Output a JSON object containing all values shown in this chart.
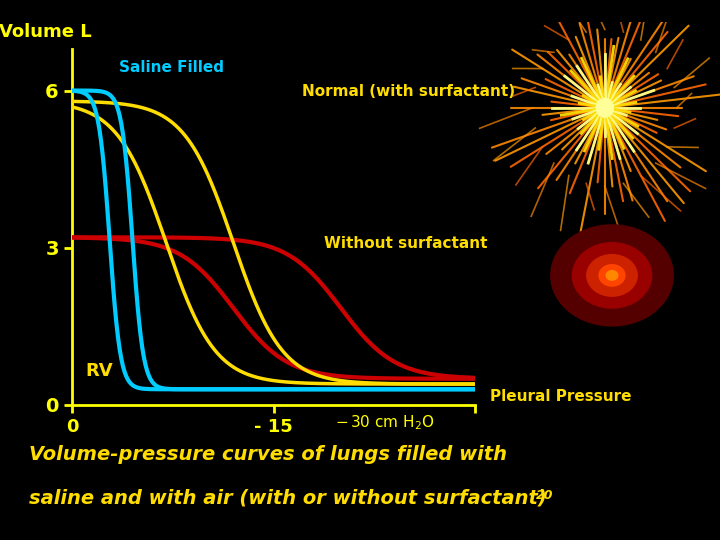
{
  "background_color": "#000000",
  "ylabel": "Volume L",
  "axis_color": "#ffff00",
  "tick_color": "#ffff00",
  "saline_color": "#00ccff",
  "normal_color": "#ffdd00",
  "without_color": "#cc0000",
  "label_saline": "Saline Filled",
  "label_normal": "Normal (with surfactant)",
  "label_without": "Without surfactant",
  "label_rv": "RV",
  "label_pleural": "Pleural Pressure",
  "caption_line1": "Volume-pressure curves of lungs filled with",
  "caption_line2": "saline and with air (with or without surfactant)",
  "caption_superscript": "20",
  "caption_color": "#ffdd00",
  "ytick_labels": [
    "0",
    "3",
    "6"
  ],
  "ytick_values": [
    0,
    3,
    6
  ],
  "xtick_labels": [
    "0",
    "- 15",
    "- 30 cm H₂O"
  ],
  "xtick_values": [
    0,
    -15,
    -30
  ]
}
